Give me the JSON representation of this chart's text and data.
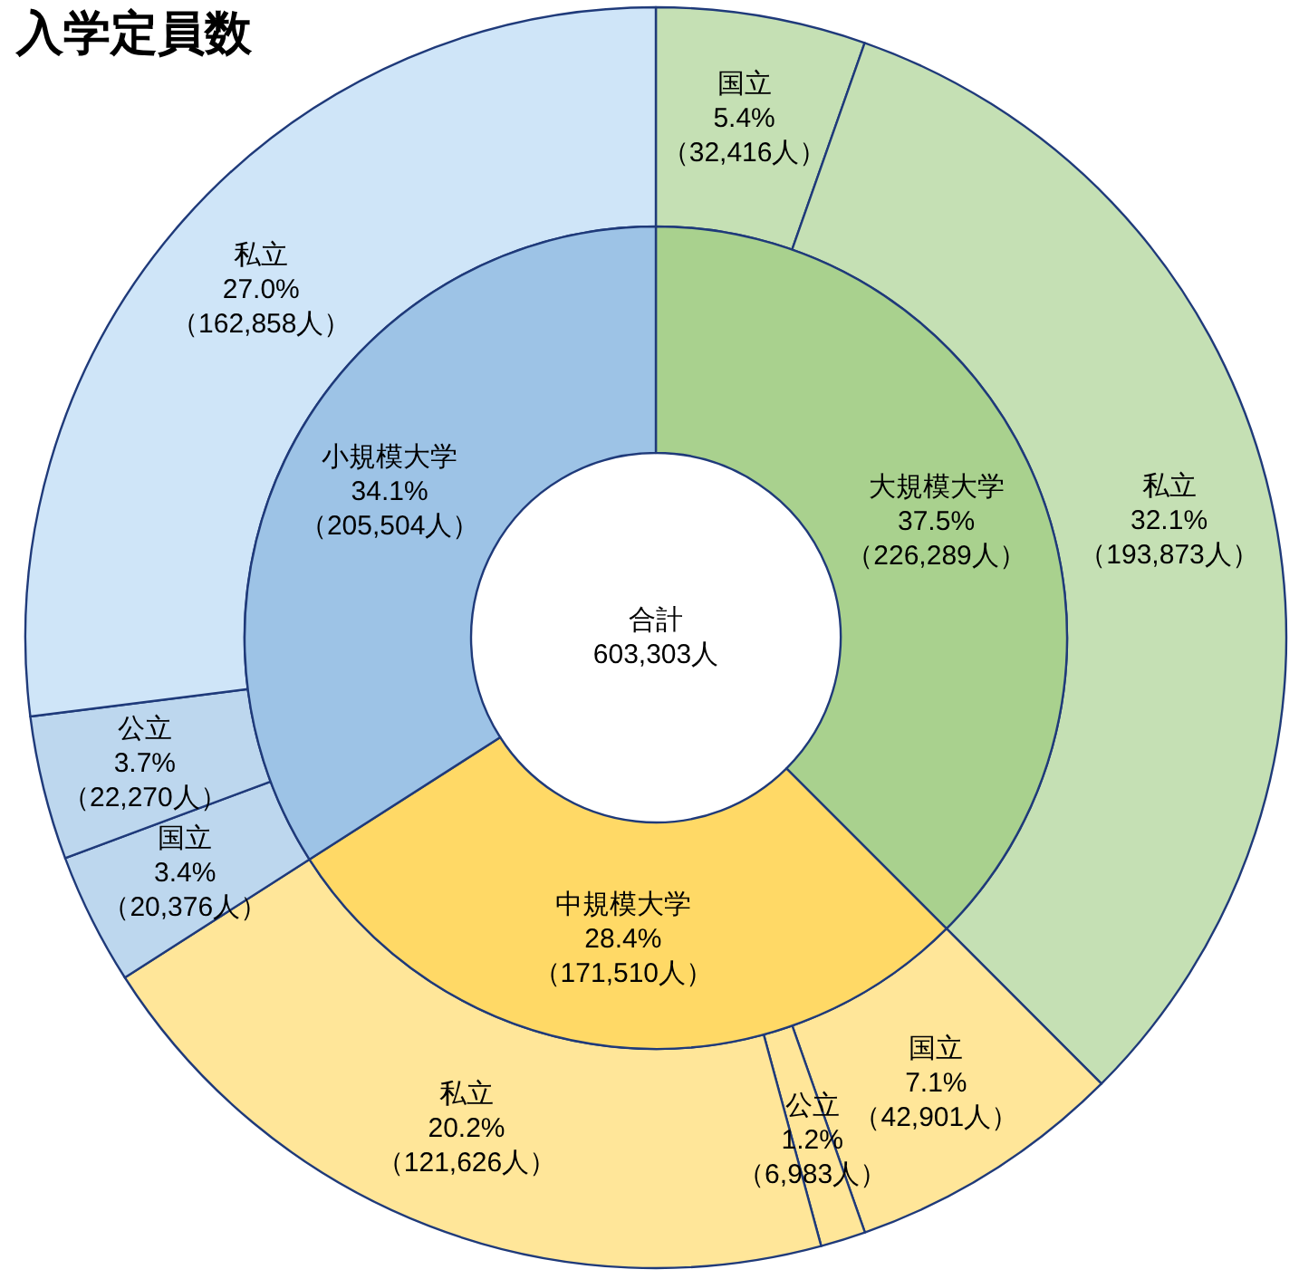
{
  "chart_data": [
    {
      "type": "donut",
      "title": "入学定員数",
      "data_labels": true,
      "categories": [
        "国立",
        "私立",
        "国立",
        "公立",
        "私立",
        "国立",
        "公立",
        "私立"
      ],
      "values": [
        32416,
        193873,
        42901,
        6983,
        121626,
        20376,
        22270,
        162858
      ],
      "colors": [
        "#c5e0b4",
        "#c5e0b4",
        "#ffe699",
        "#ffe699",
        "#ffe699",
        "#bdd7ee",
        "#bdd7ee",
        "#cfe5f8"
      ],
      "value_labels": [
        "5.4%\n（32,416人）",
        "32.1%\n（193,873人）",
        "7.1%\n（42,901人）",
        "1.2%\n（6,983人）",
        "20.2%\n（121,626人）",
        "3.4%\n（20,376人）",
        "3.7%\n（22,270人）",
        "27.0%\n（162,858人）"
      ]
    },
    {
      "type": "donut",
      "annotations": [
        "合計\n603,303人"
      ],
      "data_labels": true,
      "categories": [
        "大規模大学",
        "中規模大学",
        "小規模大学"
      ],
      "values": [
        226289,
        171510,
        205504
      ],
      "colors": [
        "#a9d18e",
        "#ffd966",
        "#9dc3e6"
      ],
      "value_labels": [
        "37.5%\n（226,289人）",
        "28.4%\n（171,510人）",
        "34.1%\n（205,504人）"
      ]
    }
  ]
}
